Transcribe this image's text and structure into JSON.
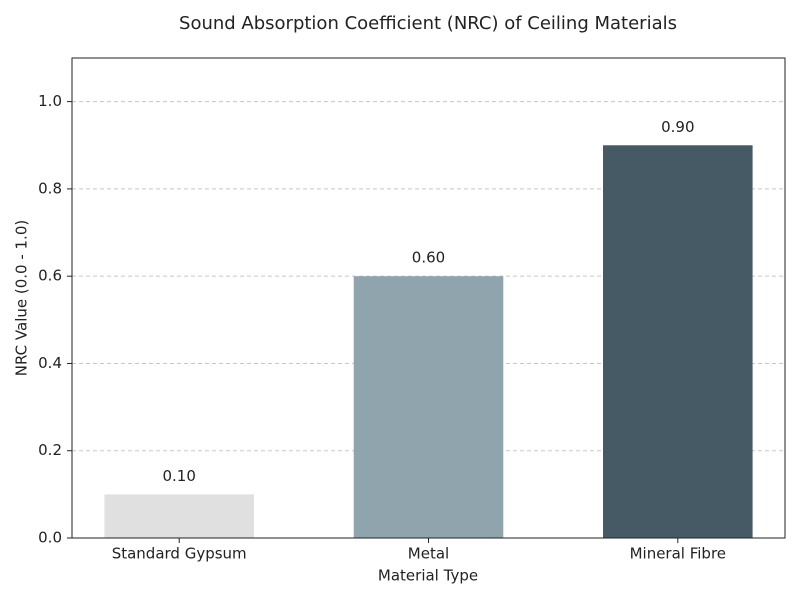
{
  "chart_data": {
    "type": "bar",
    "title": "Sound Absorption Coefficient (NRC) of Ceiling Materials",
    "x_label": "Material Type",
    "y_label": "NRC Value (0.0 - 1.0)",
    "categories": [
      "Standard Gypsum",
      "Metal",
      "Mineral Fibre"
    ],
    "values": [
      0.1,
      0.6,
      0.9
    ],
    "value_labels": [
      "0.10",
      "0.60",
      "0.90"
    ],
    "colors": [
      "#e0e0e0",
      "#90a4ae",
      "#455a64"
    ],
    "ylim": [
      0,
      1.1
    ],
    "yticks": [
      {
        "value": 0,
        "label": "0.0"
      },
      0.2,
      0.4,
      0.6,
      0.8,
      {
        "value": 1,
        "label": "1.0"
      }
    ],
    "grid": true
  }
}
